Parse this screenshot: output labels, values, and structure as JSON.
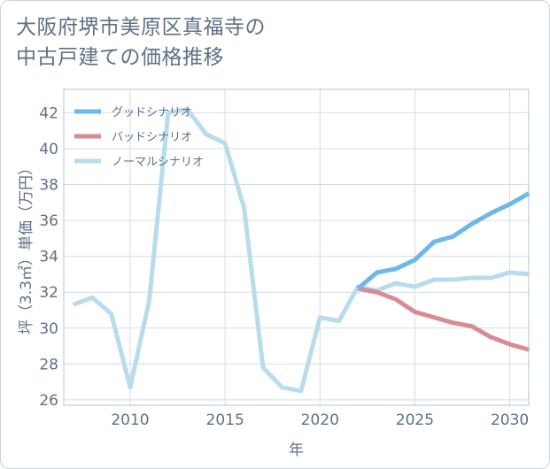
{
  "title_lines": [
    "大阪府堺市美原区真福寺の",
    "中古戸建ての価格推移"
  ],
  "chart_data": {
    "type": "line",
    "title": "大阪府堺市美原区真福寺の中古戸建ての価格推移",
    "xlabel": "年",
    "ylabel": "坪（3.3㎡）単価（万円）",
    "xlim": [
      2006.5,
      2031
    ],
    "ylim": [
      25.7,
      43.3
    ],
    "xticks": [
      2010,
      2015,
      2020,
      2025,
      2030
    ],
    "yticks": [
      26,
      28,
      30,
      32,
      34,
      36,
      38,
      40,
      42
    ],
    "legend_position": "top-left",
    "series": [
      {
        "name": "グッドシナリオ",
        "color": "#6cb8ea",
        "x": [
          2022,
          2023,
          2024,
          2025,
          2026,
          2027,
          2028,
          2029,
          2030,
          2031
        ],
        "values": [
          32.2,
          33.1,
          33.3,
          33.8,
          34.8,
          35.1,
          35.8,
          36.4,
          36.9,
          37.5
        ]
      },
      {
        "name": "バッドシナリオ",
        "color": "#d98a92",
        "x": [
          2022,
          2023,
          2024,
          2025,
          2026,
          2027,
          2028,
          2029,
          2030,
          2031
        ],
        "values": [
          32.2,
          32.0,
          31.6,
          30.9,
          30.6,
          30.3,
          30.1,
          29.5,
          29.1,
          28.8
        ]
      },
      {
        "name": "ノーマルシナリオ",
        "color": "#b9dcec",
        "x": [
          2007,
          2008,
          2009,
          2010,
          2011,
          2012,
          2013,
          2014,
          2015,
          2016,
          2017,
          2018,
          2019,
          2020,
          2021,
          2022,
          2023,
          2024,
          2025,
          2026,
          2027,
          2028,
          2029,
          2030,
          2031
        ],
        "values": [
          31.3,
          31.7,
          30.8,
          26.7,
          31.5,
          42.0,
          42.2,
          40.8,
          40.3,
          36.7,
          27.8,
          26.7,
          26.5,
          30.6,
          30.4,
          32.3,
          32.1,
          32.5,
          32.3,
          32.7,
          32.7,
          32.8,
          32.8,
          33.1,
          33.0
        ]
      }
    ]
  }
}
